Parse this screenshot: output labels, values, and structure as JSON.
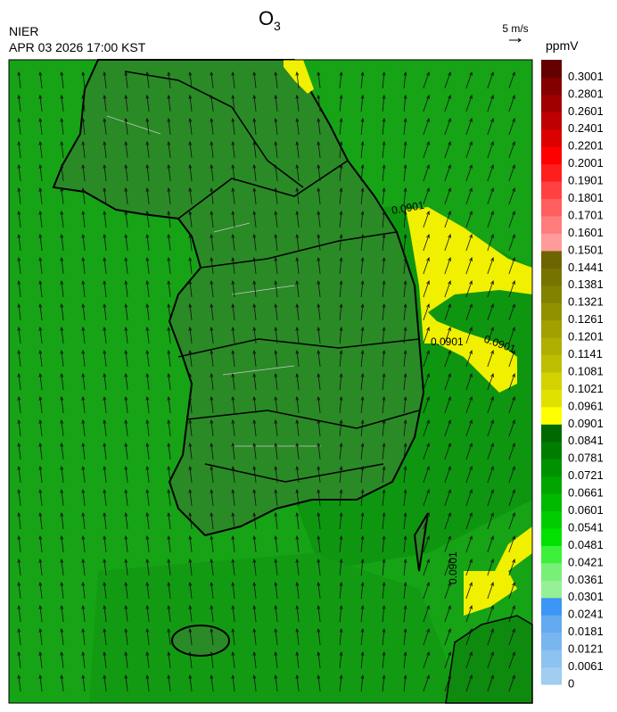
{
  "header": {
    "agency": "NIER",
    "datetime": "APR 03 2026 17:00 KST",
    "title": {
      "text": "O",
      "subscript": "3"
    },
    "wind_scale": "5 m/s"
  },
  "legend": {
    "unit": "ppmV",
    "levels": [
      {
        "label": "0",
        "color": "#a0cdf0"
      },
      {
        "label": "0.0061",
        "color": "#8cc3f0"
      },
      {
        "label": "0.0121",
        "color": "#78b6f0"
      },
      {
        "label": "0.0181",
        "color": "#64aaf0"
      },
      {
        "label": "0.0241",
        "color": "#3c96f5"
      },
      {
        "label": "0.0301",
        "color": "#96f096"
      },
      {
        "label": "0.0361",
        "color": "#78f078"
      },
      {
        "label": "0.0421",
        "color": "#3cf03c"
      },
      {
        "label": "0.0481",
        "color": "#00e100"
      },
      {
        "label": "0.0541",
        "color": "#00cd00"
      },
      {
        "label": "0.0601",
        "color": "#00b900"
      },
      {
        "label": "0.0661",
        "color": "#00a500"
      },
      {
        "label": "0.0721",
        "color": "#009100"
      },
      {
        "label": "0.0781",
        "color": "#007d00"
      },
      {
        "label": "0.0841",
        "color": "#006900"
      },
      {
        "label": "0.0901",
        "color": "#ffff00"
      },
      {
        "label": "0.0961",
        "color": "#e1e100"
      },
      {
        "label": "0.1021",
        "color": "#d2d200"
      },
      {
        "label": "0.1081",
        "color": "#bebe00"
      },
      {
        "label": "0.1141",
        "color": "#afaf00"
      },
      {
        "label": "0.1201",
        "color": "#a0a000"
      },
      {
        "label": "0.1261",
        "color": "#919100"
      },
      {
        "label": "0.1321",
        "color": "#828200"
      },
      {
        "label": "0.1381",
        "color": "#787300"
      },
      {
        "label": "0.1441",
        "color": "#6e6400"
      },
      {
        "label": "0.1501",
        "color": "#ff9b9b"
      },
      {
        "label": "0.1601",
        "color": "#ff7d7d"
      },
      {
        "label": "0.1701",
        "color": "#ff5f5f"
      },
      {
        "label": "0.1801",
        "color": "#ff4141"
      },
      {
        "label": "0.1901",
        "color": "#ff1e1e"
      },
      {
        "label": "0.2001",
        "color": "#ff0000"
      },
      {
        "label": "0.2201",
        "color": "#dc0000"
      },
      {
        "label": "0.2401",
        "color": "#be0000"
      },
      {
        "label": "0.2601",
        "color": "#a00000"
      },
      {
        "label": "0.2801",
        "color": "#820000"
      },
      {
        "label": "0.3001",
        "color": "#640000"
      }
    ]
  },
  "map": {
    "contour_labels": [
      "0.0901",
      "0.0901",
      "0.0901",
      "0.0901"
    ]
  }
}
